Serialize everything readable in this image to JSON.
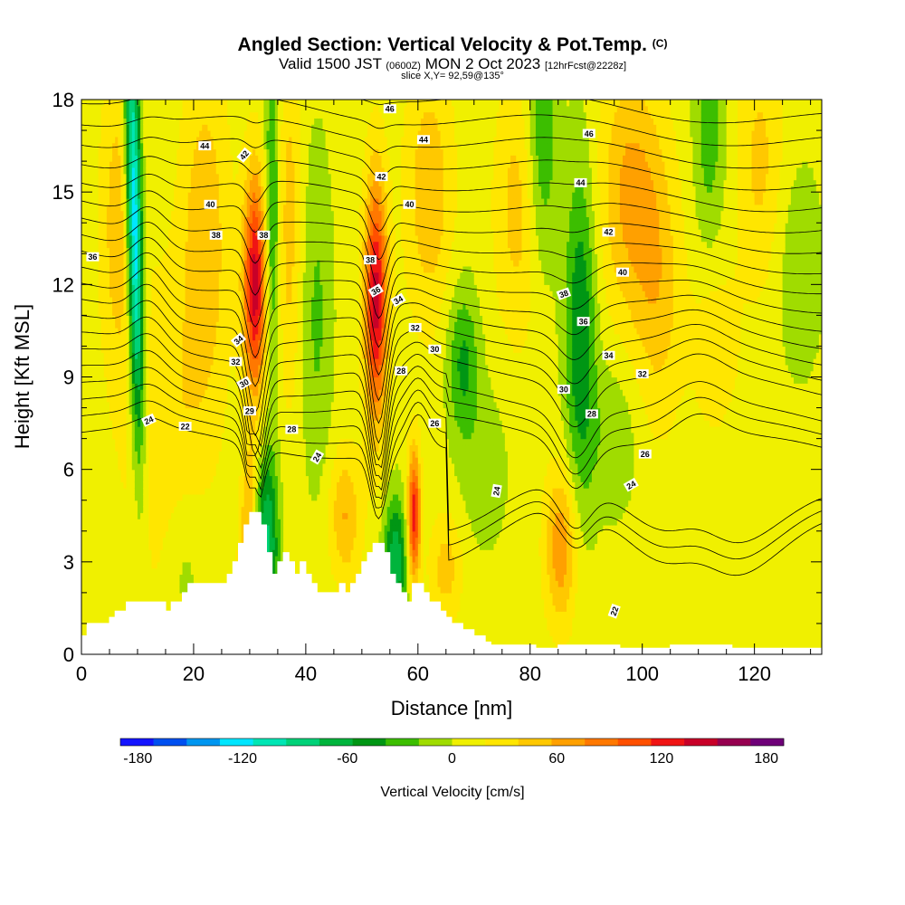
{
  "header": {
    "title": "Angled Section: Vertical Velocity & Pot.Temp.",
    "title_mark": "(C)",
    "valid_prefix": "Valid 1500 JST",
    "valid_utc": "(0600Z)",
    "valid_date": "MON 2 Oct 2023",
    "forecast_info": "[12hrFcst@2228z]",
    "slice_info": "slice X,Y= 92,59@135°"
  },
  "chart_data": {
    "type": "heatmap",
    "xlabel": "Distance [nm]",
    "ylabel": "Height [Kft MSL]",
    "xlim": [
      0,
      132
    ],
    "ylim": [
      0,
      18
    ],
    "x_ticks": [
      "0",
      "20",
      "40",
      "60",
      "80",
      "100",
      "120"
    ],
    "y_ticks": [
      "0",
      "3",
      "6",
      "9",
      "12",
      "15",
      "18"
    ],
    "terrain": {
      "x": [
        0,
        1,
        3,
        5,
        6,
        8,
        9,
        13,
        15,
        16,
        18,
        19,
        21,
        22,
        25,
        26,
        27,
        28,
        29,
        30,
        31,
        32,
        33,
        34,
        35,
        36,
        37,
        38,
        39,
        40,
        41,
        42,
        43,
        44,
        45,
        46,
        47,
        48,
        49,
        50,
        51,
        52,
        53,
        54,
        55,
        56,
        57,
        58,
        59,
        60,
        61,
        62,
        63,
        64,
        65,
        66,
        68,
        70,
        72,
        73,
        80,
        81,
        84,
        85,
        95,
        96,
        104,
        105,
        115,
        116,
        126,
        132
      ],
      "y": [
        0.6,
        1.0,
        1.0,
        1.2,
        1.4,
        1.7,
        1.7,
        1.7,
        1.4,
        1.7,
        2.0,
        2.3,
        2.3,
        2.3,
        2.3,
        2.6,
        3.0,
        3.6,
        4.2,
        4.6,
        4.6,
        4.2,
        3.3,
        2.6,
        3.0,
        3.3,
        3.0,
        2.6,
        3.0,
        2.6,
        2.3,
        2.0,
        2.0,
        2.0,
        2.0,
        2.3,
        2.0,
        2.3,
        2.6,
        3.0,
        3.3,
        3.6,
        3.6,
        3.3,
        2.6,
        2.3,
        2.0,
        1.7,
        2.3,
        2.3,
        2.0,
        1.7,
        1.7,
        1.4,
        1.2,
        1.0,
        0.8,
        0.6,
        0.4,
        0.3,
        0.3,
        0.2,
        0.2,
        0.3,
        0.3,
        0.2,
        0.2,
        0.3,
        0.3,
        0.2,
        0.2,
        0.2
      ]
    },
    "updrafts": [
      {
        "x": 29,
        "z": 4.0,
        "ux": 32,
        "uz": 10,
        "lean": 0.0,
        "w": 1.0,
        "s": 2.0,
        "amp": 55
      },
      {
        "x": 31,
        "z": 12.0,
        "ux": 31,
        "uz": 12,
        "lean": 0.0,
        "w": 1.5,
        "s": 2.5,
        "amp": 135
      },
      {
        "x": 52.5,
        "z": 11.5,
        "ux": 52.5,
        "uz": 11.5,
        "lean": 0.0,
        "w": 1.4,
        "s": 2.8,
        "amp": 135
      },
      {
        "x": 59.3,
        "z": 4.5,
        "ux": 59.3,
        "uz": 4.5,
        "lean": 0.0,
        "w": 0.8,
        "s": 1.5,
        "amp": 120
      },
      {
        "x": 85.5,
        "z": 3.5,
        "ux": 85.5,
        "uz": 3.5,
        "lean": 0.0,
        "w": 2.0,
        "s": 1.8,
        "amp": 65
      },
      {
        "x": 47,
        "z": 4.5,
        "ux": 47,
        "uz": 4.5,
        "lean": 0.0,
        "w": 2.0,
        "s": 1.5,
        "amp": 50
      },
      {
        "x": 65,
        "z": 2.8,
        "ux": 65,
        "uz": 2.8,
        "lean": 0.0,
        "w": 2.0,
        "s": 1.2,
        "amp": 40
      },
      {
        "x": 15,
        "z": 6.5,
        "ux": 15,
        "uz": 6.5,
        "lean": 0.0,
        "w": 5.0,
        "s": 4.0,
        "amp": 30
      },
      {
        "x": 98,
        "z": 15.0,
        "ux": 98,
        "uz": 15,
        "lean": 0.0,
        "w": 4.0,
        "s": 3.0,
        "amp": 55
      },
      {
        "x": 103,
        "z": 11.5,
        "ux": 103,
        "uz": 11.5,
        "lean": 0.0,
        "w": 3.0,
        "s": 3.0,
        "amp": 35
      },
      {
        "x": 7,
        "z": 14.0,
        "ux": 7,
        "uz": 14,
        "lean": 0.0,
        "w": 2.5,
        "s": 3.5,
        "amp": 45
      },
      {
        "x": 22,
        "z": 13.5,
        "ux": 22,
        "uz": 13.5,
        "lean": 0.0,
        "w": 3.0,
        "s": 4.0,
        "amp": 45
      },
      {
        "x": 62,
        "z": 15.0,
        "ux": 62,
        "uz": 15,
        "lean": 0.0,
        "w": 3.0,
        "s": 3.0,
        "amp": 45
      },
      {
        "x": 121,
        "z": 16.0,
        "ux": 121,
        "uz": 16,
        "lean": 0.0,
        "w": 3.0,
        "s": 3.0,
        "amp": 35
      },
      {
        "x": 37,
        "z": 14.0,
        "ux": 37,
        "uz": 14,
        "lean": 0.0,
        "w": 1.5,
        "s": 4.0,
        "amp": 40
      },
      {
        "x": 113,
        "z": 10.0,
        "ux": 113,
        "uz": 10,
        "lean": 0.0,
        "w": 3.0,
        "s": 2.0,
        "amp": 25
      },
      {
        "x": 78,
        "z": 14.5,
        "ux": 78,
        "uz": 14.5,
        "lean": 0.0,
        "w": 3.0,
        "s": 3.0,
        "amp": 40
      },
      {
        "x": 11,
        "z": 14.0,
        "ux": 9,
        "uz": 18,
        "lean": 0.0,
        "w": 1.0,
        "s": 5.0,
        "amp": -160
      },
      {
        "x": 33,
        "z": 3.5,
        "ux": 33,
        "uz": 3.5,
        "lean": 0.0,
        "w": 1.5,
        "s": 2.0,
        "amp": -90
      },
      {
        "x": 56,
        "z": 3.0,
        "ux": 56,
        "uz": 3.0,
        "lean": 0.0,
        "w": 1.5,
        "s": 1.5,
        "amp": -80
      },
      {
        "x": 34,
        "z": 14.0,
        "ux": 34,
        "uz": 14,
        "lean": 0.0,
        "w": 1.0,
        "s": 4.0,
        "amp": -60
      },
      {
        "x": 89,
        "z": 10.5,
        "ux": 89,
        "uz": 10.5,
        "lean": 0.0,
        "w": 2.0,
        "s": 4.0,
        "amp": -65
      },
      {
        "x": 68,
        "z": 9.5,
        "ux": 68,
        "uz": 9.5,
        "lean": 0.0,
        "w": 2.0,
        "s": 1.8,
        "amp": -50
      },
      {
        "x": 82,
        "z": 16.5,
        "ux": 82,
        "uz": 16.5,
        "lean": 0.0,
        "w": 2.0,
        "s": 3.0,
        "amp": -50
      },
      {
        "x": 112,
        "z": 17.5,
        "ux": 112,
        "uz": 17.5,
        "lean": 0.0,
        "w": 2.0,
        "s": 3.0,
        "amp": -40
      },
      {
        "x": 95,
        "z": 7.0,
        "ux": 95,
        "uz": 7.0,
        "lean": 0.0,
        "w": 3.0,
        "s": 1.8,
        "amp": -25
      },
      {
        "x": 128,
        "z": 12.5,
        "ux": 128,
        "uz": 12.5,
        "lean": 0.0,
        "w": 3.0,
        "s": 2.5,
        "amp": -25
      },
      {
        "x": 42,
        "z": 11.0,
        "ux": 42,
        "uz": 11,
        "lean": 0.0,
        "w": 2.0,
        "s": 4.0,
        "amp": -30
      },
      {
        "x": 18,
        "z": 3.0,
        "ux": 18,
        "uz": 3.0,
        "lean": 0.0,
        "w": 3.0,
        "s": 2.0,
        "amp": -25
      },
      {
        "x": 72,
        "z": 6.0,
        "ux": 72,
        "uz": 6.0,
        "lean": 0.0,
        "w": 3.0,
        "s": 2.0,
        "amp": -20
      }
    ],
    "isentropes": {
      "levels": [
        22,
        23,
        24,
        25,
        26,
        27,
        28,
        29,
        30,
        31,
        32,
        33,
        34,
        35,
        36,
        37,
        38,
        39,
        40,
        41,
        42,
        43,
        44,
        45,
        46
      ],
      "labels": [
        {
          "text": "24",
          "x": 12,
          "y": 7.6,
          "rot": -25
        },
        {
          "text": "22",
          "x": 18.5,
          "y": 7.4,
          "rot": 0
        },
        {
          "text": "36",
          "x": 2,
          "y": 12.9,
          "rot": 0
        },
        {
          "text": "38",
          "x": 24,
          "y": 13.6,
          "rot": 0
        },
        {
          "text": "40",
          "x": 23,
          "y": 14.6,
          "rot": 0
        },
        {
          "text": "44",
          "x": 22,
          "y": 16.5,
          "rot": 0
        },
        {
          "text": "42",
          "x": 29,
          "y": 16.2,
          "rot": -50
        },
        {
          "text": "38",
          "x": 32.5,
          "y": 13.6,
          "rot": 0
        },
        {
          "text": "34",
          "x": 28,
          "y": 10.2,
          "rot": -40
        },
        {
          "text": "32",
          "x": 27.5,
          "y": 9.5,
          "rot": 0
        },
        {
          "text": "30",
          "x": 29,
          "y": 8.8,
          "rot": -30
        },
        {
          "text": "29",
          "x": 30,
          "y": 7.9,
          "rot": 0
        },
        {
          "text": "28",
          "x": 37.5,
          "y": 7.3,
          "rot": 0
        },
        {
          "text": "24",
          "x": 42,
          "y": 6.4,
          "rot": -60
        },
        {
          "text": "46",
          "x": 55,
          "y": 17.7,
          "rot": 0
        },
        {
          "text": "44",
          "x": 61,
          "y": 16.7,
          "rot": 0
        },
        {
          "text": "42",
          "x": 53.5,
          "y": 15.5,
          "rot": 0
        },
        {
          "text": "40",
          "x": 58.5,
          "y": 14.6,
          "rot": 0
        },
        {
          "text": "38",
          "x": 51.5,
          "y": 12.8,
          "rot": 0
        },
        {
          "text": "36",
          "x": 52.5,
          "y": 11.8,
          "rot": -30
        },
        {
          "text": "34",
          "x": 56.5,
          "y": 11.5,
          "rot": -30
        },
        {
          "text": "32",
          "x": 59.5,
          "y": 10.6,
          "rot": 0
        },
        {
          "text": "30",
          "x": 63,
          "y": 9.9,
          "rot": 0
        },
        {
          "text": "28",
          "x": 57,
          "y": 9.2,
          "rot": 0
        },
        {
          "text": "26",
          "x": 63,
          "y": 7.5,
          "rot": 0
        },
        {
          "text": "24",
          "x": 74,
          "y": 5.3,
          "rot": -80
        },
        {
          "text": "46",
          "x": 90.5,
          "y": 16.9,
          "rot": 0
        },
        {
          "text": "44",
          "x": 89,
          "y": 15.3,
          "rot": 0
        },
        {
          "text": "42",
          "x": 94,
          "y": 13.7,
          "rot": 0
        },
        {
          "text": "40",
          "x": 96.5,
          "y": 12.4,
          "rot": 0
        },
        {
          "text": "38",
          "x": 86,
          "y": 11.7,
          "rot": -20
        },
        {
          "text": "36",
          "x": 89.5,
          "y": 10.8,
          "rot": 0
        },
        {
          "text": "34",
          "x": 94,
          "y": 9.7,
          "rot": 0
        },
        {
          "text": "32",
          "x": 100,
          "y": 9.1,
          "rot": 0
        },
        {
          "text": "30",
          "x": 86,
          "y": 8.6,
          "rot": 0
        },
        {
          "text": "28",
          "x": 91,
          "y": 7.8,
          "rot": 0
        },
        {
          "text": "26",
          "x": 100.5,
          "y": 6.5,
          "rot": 0
        },
        {
          "text": "24",
          "x": 98,
          "y": 5.5,
          "rot": -30
        },
        {
          "text": "22",
          "x": 95,
          "y": 1.4,
          "rot": -70
        }
      ]
    },
    "colorbar": {
      "label": "Vertical Velocity [cm/s]",
      "tick_labels": [
        "-180",
        "-120",
        "-60",
        "0",
        "60",
        "120",
        "180"
      ],
      "min": -190,
      "max": 190,
      "colors": [
        "#1414ff",
        "#0050f0",
        "#0096f0",
        "#00e6ff",
        "#00e6b4",
        "#00d278",
        "#00b43c",
        "#009614",
        "#3cbe00",
        "#a0dc00",
        "#f0f000",
        "#ffe600",
        "#ffc800",
        "#ffa000",
        "#ff7800",
        "#ff5000",
        "#f01414",
        "#c80028",
        "#960050",
        "#6e0078"
      ]
    }
  }
}
